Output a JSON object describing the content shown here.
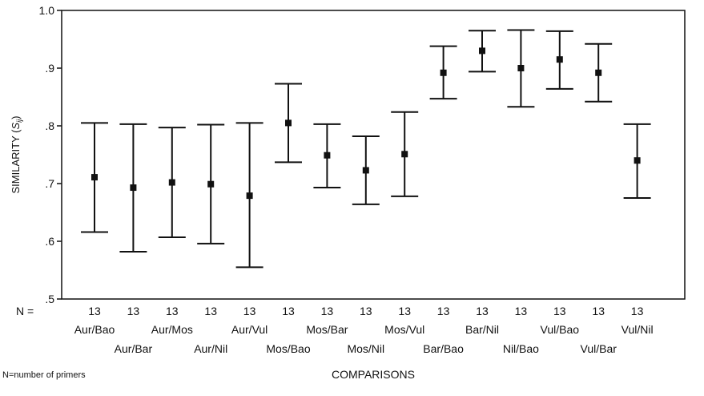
{
  "chart_data": {
    "type": "errorbar",
    "xlabel": "COMPARISONS",
    "ylabel_main": "SIMILARITY (",
    "ylabel_var": "S",
    "ylabel_sub": "ij",
    "ylabel_close": ")",
    "ylim": [
      0.5,
      1.0
    ],
    "y_ticks": [
      {
        "value": 0.5,
        "label": ".5"
      },
      {
        "value": 0.6,
        "label": ".6"
      },
      {
        "value": 0.7,
        "label": ".7"
      },
      {
        "value": 0.8,
        "label": ".8"
      },
      {
        "value": 0.9,
        "label": ".9"
      },
      {
        "value": 1.0,
        "label": "1.0"
      }
    ],
    "n_prefix": "N =",
    "footnote": "N=number of primers",
    "categories": [
      "Aur/Bao",
      "Aur/Bar",
      "Aur/Mos",
      "Aur/Nil",
      "Aur/Vul",
      "Mos/Bao",
      "Mos/Bar",
      "Mos/Nil",
      "Mos/Vul",
      "Bar/Bao",
      "Bar/Nil",
      "Nil/Bao",
      "Vul/Bao",
      "Vul/Bar",
      "Vul/Nil"
    ],
    "n": [
      "13",
      "13",
      "13",
      "13",
      "13",
      "13",
      "13",
      "13",
      "13",
      "13",
      "13",
      "13",
      "13",
      "13",
      "13"
    ],
    "mean": [
      0.711,
      0.693,
      0.702,
      0.699,
      0.679,
      0.805,
      0.749,
      0.723,
      0.751,
      0.892,
      0.93,
      0.9,
      0.915,
      0.892,
      0.74
    ],
    "upper": [
      0.805,
      0.803,
      0.797,
      0.802,
      0.805,
      0.873,
      0.803,
      0.782,
      0.824,
      0.938,
      0.965,
      0.966,
      0.964,
      0.942,
      0.803
    ],
    "lower": [
      0.616,
      0.582,
      0.607,
      0.596,
      0.555,
      0.737,
      0.693,
      0.664,
      0.678,
      0.847,
      0.894,
      0.833,
      0.864,
      0.842,
      0.675
    ]
  }
}
